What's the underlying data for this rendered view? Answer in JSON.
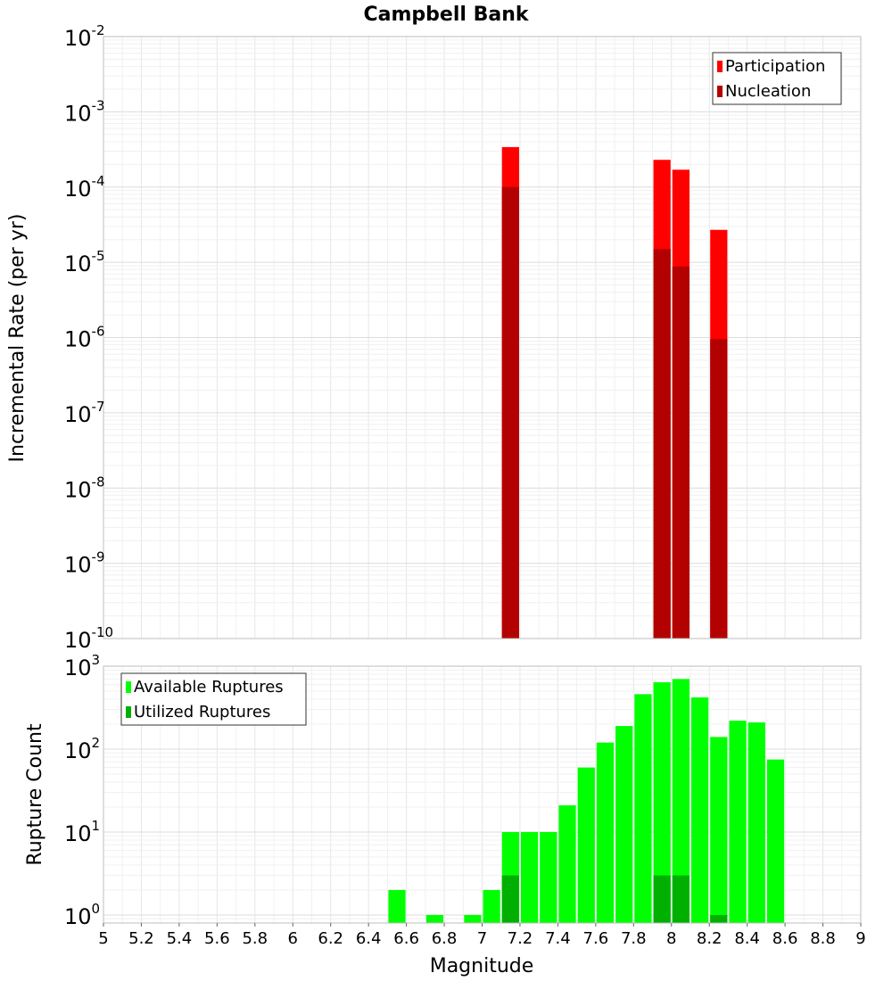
{
  "chart_data": [
    {
      "type": "bar",
      "title": "Campbell Bank",
      "xlabel": "",
      "ylabel": "Incremental Rate (per yr)",
      "yscale": "log",
      "ylim": [
        1e-10,
        0.01
      ],
      "xlim": [
        5,
        9
      ],
      "grid": true,
      "legend_position": "top-right",
      "y_tick_labels": [
        {
          "base": "10",
          "exp": "-10"
        },
        {
          "base": "10",
          "exp": "-9"
        },
        {
          "base": "10",
          "exp": "-8"
        },
        {
          "base": "10",
          "exp": "-7"
        },
        {
          "base": "10",
          "exp": "-6"
        },
        {
          "base": "10",
          "exp": "-5"
        },
        {
          "base": "10",
          "exp": "-4"
        },
        {
          "base": "10",
          "exp": "-3"
        },
        {
          "base": "10",
          "exp": "-2"
        }
      ],
      "series": [
        {
          "name": "Participation",
          "color": "#ff0000",
          "points": [
            {
              "x": 7.15,
              "y": 0.00034
            },
            {
              "x": 7.95,
              "y": 0.00023
            },
            {
              "x": 8.05,
              "y": 0.00017
            },
            {
              "x": 8.25,
              "y": 2.7e-05
            }
          ]
        },
        {
          "name": "Nucleation",
          "color": "#b30000",
          "points": [
            {
              "x": 7.15,
              "y": 0.0001
            },
            {
              "x": 7.95,
              "y": 1.5e-05
            },
            {
              "x": 8.05,
              "y": 8.8e-06
            },
            {
              "x": 8.25,
              "y": 9.5e-07
            }
          ]
        }
      ]
    },
    {
      "type": "bar",
      "title": "",
      "xlabel": "Magnitude",
      "ylabel": "Rupture Count",
      "yscale": "log",
      "ylim": [
        0.8,
        1000
      ],
      "xlim": [
        5,
        9
      ],
      "grid": true,
      "legend_position": "top-left",
      "x_ticks": [
        "5",
        "5.2",
        "5.4",
        "5.6",
        "5.8",
        "6",
        "6.2",
        "6.4",
        "6.6",
        "6.8",
        "7",
        "7.2",
        "7.4",
        "7.6",
        "7.8",
        "8",
        "8.2",
        "8.4",
        "8.6",
        "8.8",
        "9"
      ],
      "y_tick_labels": [
        {
          "base": "10",
          "exp": "0"
        },
        {
          "base": "10",
          "exp": "1"
        },
        {
          "base": "10",
          "exp": "2"
        },
        {
          "base": "10",
          "exp": "3"
        }
      ],
      "series": [
        {
          "name": "Available Ruptures",
          "color": "#00ff00",
          "points": [
            {
              "x": 6.55,
              "y": 2
            },
            {
              "x": 6.75,
              "y": 1
            },
            {
              "x": 6.95,
              "y": 1
            },
            {
              "x": 7.05,
              "y": 2
            },
            {
              "x": 7.15,
              "y": 10
            },
            {
              "x": 7.25,
              "y": 10
            },
            {
              "x": 7.35,
              "y": 10
            },
            {
              "x": 7.45,
              "y": 21
            },
            {
              "x": 7.55,
              "y": 60
            },
            {
              "x": 7.65,
              "y": 120
            },
            {
              "x": 7.75,
              "y": 190
            },
            {
              "x": 7.85,
              "y": 460
            },
            {
              "x": 7.95,
              "y": 640
            },
            {
              "x": 8.05,
              "y": 700
            },
            {
              "x": 8.15,
              "y": 420
            },
            {
              "x": 8.25,
              "y": 140
            },
            {
              "x": 8.35,
              "y": 220
            },
            {
              "x": 8.45,
              "y": 210
            },
            {
              "x": 8.55,
              "y": 75
            }
          ]
        },
        {
          "name": "Utilized Ruptures",
          "color": "#00b000",
          "points": [
            {
              "x": 7.15,
              "y": 3
            },
            {
              "x": 7.95,
              "y": 3
            },
            {
              "x": 8.05,
              "y": 3
            },
            {
              "x": 8.25,
              "y": 1
            }
          ]
        }
      ]
    }
  ]
}
